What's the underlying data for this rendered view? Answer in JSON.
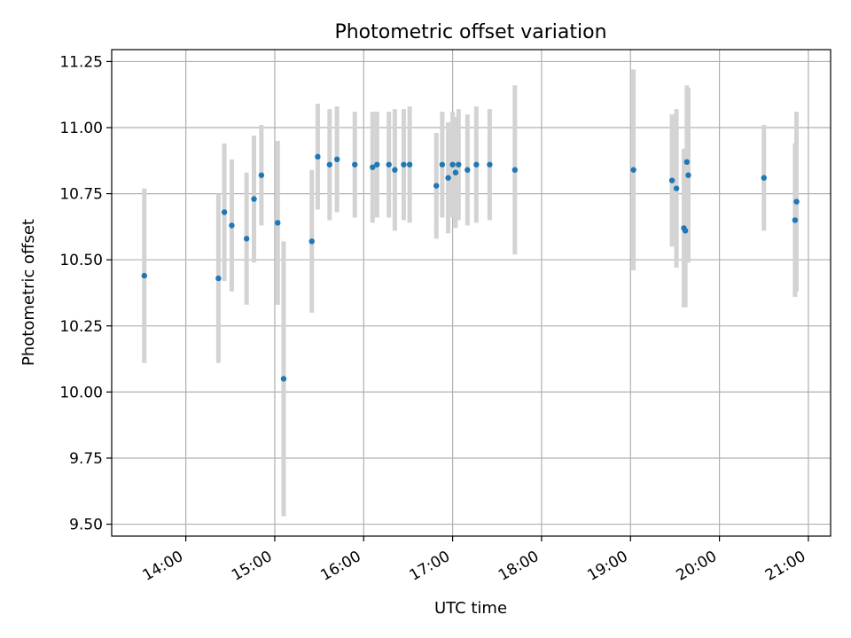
{
  "chart_data": {
    "type": "scatter",
    "title": "Photometric offset variation",
    "xlabel": "UTC time",
    "ylabel": "Photometric offset",
    "x_range": [
      "13:10",
      "21:15"
    ],
    "ylim": [
      9.455,
      11.295
    ],
    "x_ticks": [
      "14:00",
      "15:00",
      "16:00",
      "17:00",
      "18:00",
      "19:00",
      "20:00",
      "21:00"
    ],
    "y_ticks": [
      "9.50",
      "9.75",
      "10.00",
      "10.25",
      "10.50",
      "10.75",
      "11.00",
      "11.25"
    ],
    "grid": true,
    "colors": {
      "point": "#1f77b4",
      "errorbar": "#d3d3d3",
      "grid": "#b0b0b0"
    },
    "points": [
      {
        "x": "13:32",
        "y": 10.44,
        "err": 0.33
      },
      {
        "x": "14:22",
        "y": 10.43,
        "err": 0.32
      },
      {
        "x": "14:26",
        "y": 10.68,
        "err": 0.26
      },
      {
        "x": "14:31",
        "y": 10.63,
        "err": 0.25
      },
      {
        "x": "14:41",
        "y": 10.58,
        "err": 0.25
      },
      {
        "x": "14:46",
        "y": 10.73,
        "err": 0.24
      },
      {
        "x": "14:51",
        "y": 10.82,
        "err": 0.19
      },
      {
        "x": "15:02",
        "y": 10.64,
        "err": 0.31
      },
      {
        "x": "15:06",
        "y": 10.05,
        "err": 0.52
      },
      {
        "x": "15:25",
        "y": 10.57,
        "err": 0.27
      },
      {
        "x": "15:29",
        "y": 10.89,
        "err": 0.2
      },
      {
        "x": "15:37",
        "y": 10.86,
        "err": 0.21
      },
      {
        "x": "15:42",
        "y": 10.88,
        "err": 0.2
      },
      {
        "x": "15:54",
        "y": 10.86,
        "err": 0.2
      },
      {
        "x": "16:06",
        "y": 10.85,
        "err": 0.21
      },
      {
        "x": "16:09",
        "y": 10.86,
        "err": 0.2
      },
      {
        "x": "16:17",
        "y": 10.86,
        "err": 0.2
      },
      {
        "x": "16:21",
        "y": 10.84,
        "err": 0.23
      },
      {
        "x": "16:27",
        "y": 10.86,
        "err": 0.21
      },
      {
        "x": "16:31",
        "y": 10.86,
        "err": 0.22
      },
      {
        "x": "16:49",
        "y": 10.78,
        "err": 0.2
      },
      {
        "x": "16:53",
        "y": 10.86,
        "err": 0.2
      },
      {
        "x": "16:57",
        "y": 10.81,
        "err": 0.21
      },
      {
        "x": "17:00",
        "y": 10.86,
        "err": 0.2
      },
      {
        "x": "17:02",
        "y": 10.83,
        "err": 0.21
      },
      {
        "x": "17:04",
        "y": 10.86,
        "err": 0.21
      },
      {
        "x": "17:10",
        "y": 10.84,
        "err": 0.21
      },
      {
        "x": "17:16",
        "y": 10.86,
        "err": 0.22
      },
      {
        "x": "17:25",
        "y": 10.86,
        "err": 0.21
      },
      {
        "x": "17:42",
        "y": 10.84,
        "err": 0.32
      },
      {
        "x": "19:02",
        "y": 10.84,
        "err": 0.38
      },
      {
        "x": "19:28",
        "y": 10.8,
        "err": 0.25
      },
      {
        "x": "19:31",
        "y": 10.77,
        "err": 0.3
      },
      {
        "x": "19:36",
        "y": 10.62,
        "err": 0.3
      },
      {
        "x": "19:37",
        "y": 10.61,
        "err": 0.29
      },
      {
        "x": "19:38",
        "y": 10.87,
        "err": 0.29
      },
      {
        "x": "19:39",
        "y": 10.82,
        "err": 0.33
      },
      {
        "x": "20:30",
        "y": 10.81,
        "err": 0.2
      },
      {
        "x": "20:51",
        "y": 10.65,
        "err": 0.29
      },
      {
        "x": "20:52",
        "y": 10.72,
        "err": 0.34
      }
    ]
  }
}
